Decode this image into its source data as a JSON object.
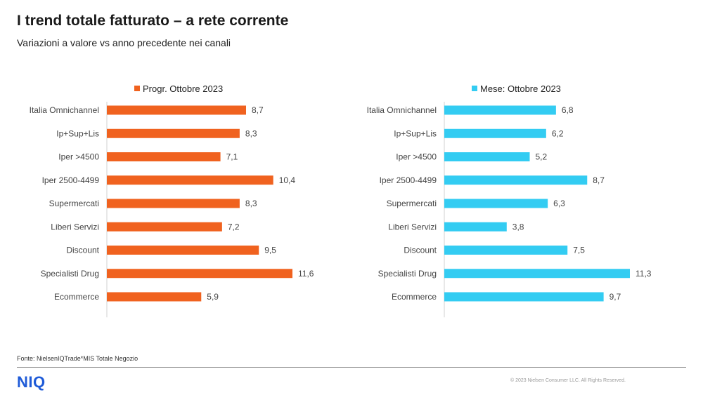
{
  "title": "I trend totale fatturato – a rete corrente",
  "subtitle": "Variazioni a valore vs anno precedente nei canali",
  "source": "Fonte: NielsenIQTrade*MIS Totale Negozio",
  "logo": "NIQ",
  "copyright": "© 2023 Nielsen Consumer LLC. All Rights Reserved.",
  "chart_data": [
    {
      "type": "bar",
      "orientation": "horizontal",
      "legend": "Progr. Ottobre 2023",
      "color": "#f0621f",
      "categories": [
        "Italia Omnichannel",
        "Ip+Sup+Lis",
        "Iper >4500",
        "Iper 2500-4499",
        "Supermercati",
        "Liberi Servizi",
        "Discount",
        "Specialisti Drug",
        "Ecommerce"
      ],
      "values": [
        8.7,
        8.3,
        7.1,
        10.4,
        8.3,
        7.2,
        9.5,
        11.6,
        5.9
      ],
      "labels": [
        "8,7",
        "8,3",
        "7,1",
        "10,4",
        "8,3",
        "7,2",
        "9,5",
        "11,6",
        "5,9"
      ],
      "xlim": [
        0,
        11.6
      ]
    },
    {
      "type": "bar",
      "orientation": "horizontal",
      "legend": "Mese: Ottobre 2023",
      "color": "#33ccf2",
      "categories": [
        "Italia Omnichannel",
        "Ip+Sup+Lis",
        "Iper >4500",
        "Iper 2500-4499",
        "Supermercati",
        "Liberi Servizi",
        "Discount",
        "Specialisti Drug",
        "Ecommerce"
      ],
      "values": [
        6.8,
        6.2,
        5.2,
        8.7,
        6.3,
        3.8,
        7.5,
        11.3,
        9.7
      ],
      "labels": [
        "6,8",
        "6,2",
        "5,2",
        "8,7",
        "6,3",
        "3,8",
        "7,5",
        "11,3",
        "9,7"
      ],
      "xlim": [
        0,
        11.3
      ]
    }
  ]
}
